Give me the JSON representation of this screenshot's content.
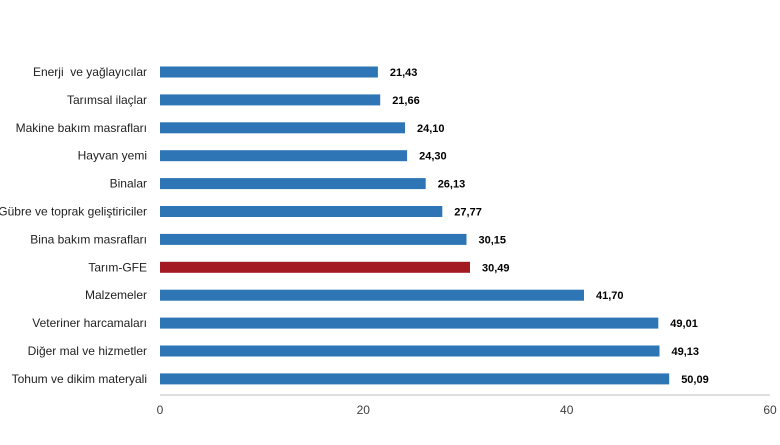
{
  "chart_data": {
    "type": "bar",
    "orientation": "horizontal",
    "title": "",
    "xlabel": "",
    "ylabel": "",
    "categories": [
      "Enerji  ve yağlayıcılar",
      "Tarımsal ilaçlar",
      "Makine bakım masrafları",
      "Hayvan yemi",
      "Binalar",
      "Gübre ve toprak geliştiriciler",
      "Bina bakım masrafları",
      "Tarım-GFE",
      "Malzemeler",
      "Veteriner harcamaları",
      "Diğer mal ve hizmetler",
      "Tohum ve dikim materyali"
    ],
    "values": [
      21.43,
      21.66,
      24.1,
      24.3,
      26.13,
      27.77,
      30.15,
      30.49,
      41.7,
      49.01,
      49.13,
      50.09
    ],
    "value_labels": [
      "21,43",
      "21,66",
      "24,10",
      "24,30",
      "26,13",
      "27,77",
      "30,15",
      "30,49",
      "41,70",
      "49,01",
      "49,13",
      "50,09"
    ],
    "xlim": [
      0,
      60
    ],
    "xticks": [
      0,
      20,
      40,
      60
    ],
    "xtick_labels": [
      "0",
      "20",
      "40",
      "60"
    ],
    "grid": false,
    "legend": "none",
    "colors": {
      "default": "#2e75b6",
      "highlight": "#a31a22",
      "axis": "#bfbfbf"
    },
    "highlight_category": "Tarım-GFE"
  }
}
